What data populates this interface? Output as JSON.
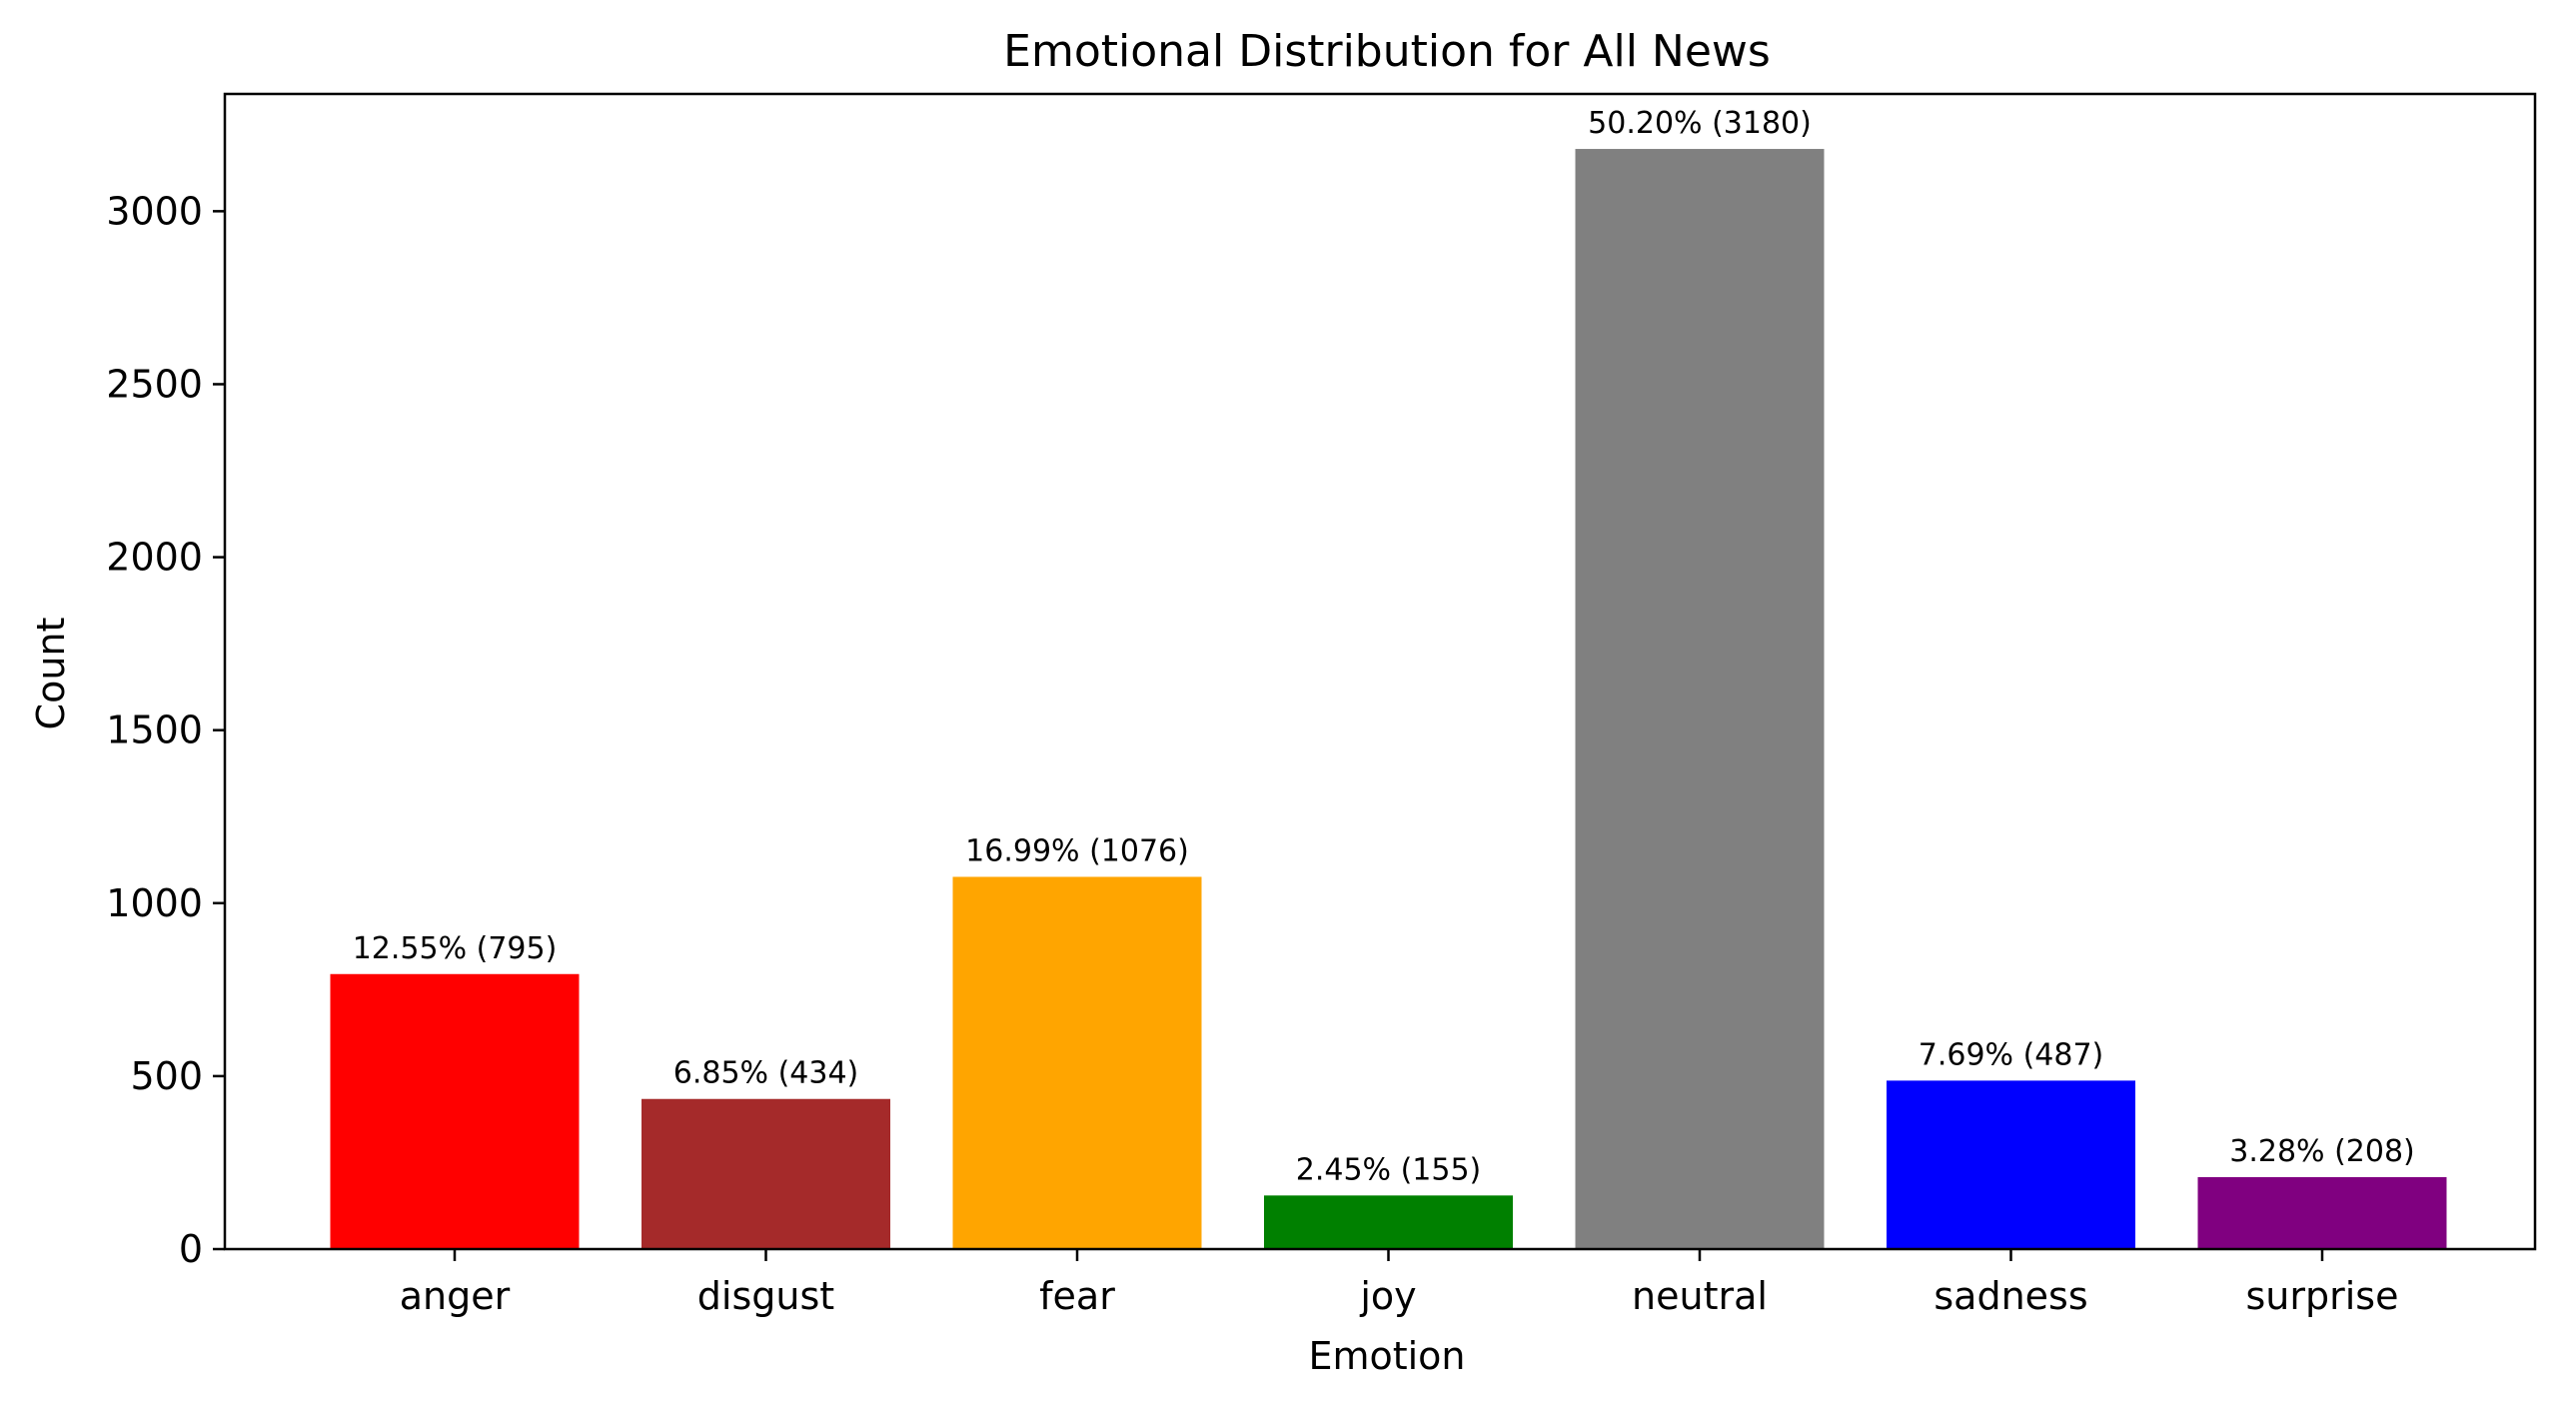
{
  "chart_data": {
    "type": "bar",
    "title": "Emotional Distribution for All News",
    "xlabel": "Emotion",
    "ylabel": "Count",
    "ylim": [
      0,
      3339
    ],
    "yticks": [
      0,
      500,
      1000,
      1500,
      2000,
      2500,
      3000
    ],
    "grid": false,
    "categories": [
      "anger",
      "disgust",
      "fear",
      "joy",
      "neutral",
      "sadness",
      "surprise"
    ],
    "values": [
      795,
      434,
      1076,
      155,
      3180,
      487,
      208
    ],
    "data_labels": [
      "12.55% (795)",
      "6.85% (434)",
      "16.99% (1076)",
      "2.45% (155)",
      "50.20% (3180)",
      "7.69% (487)",
      "3.28% (208)"
    ],
    "colors": [
      "#ff0000",
      "#a52a2a",
      "#ffa500",
      "#008000",
      "#808080",
      "#0000ff",
      "#800080"
    ]
  }
}
